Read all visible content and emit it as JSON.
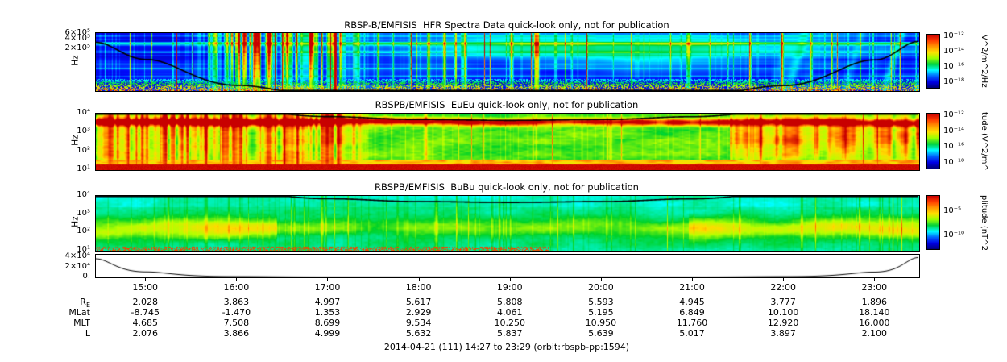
{
  "figure_footer": "2014-04-21 (111) 14:27 to 23:29 (orbit:rbspb-pp:1594)",
  "time_axis": {
    "start": "14:27",
    "end": "23:29",
    "ticks": [
      "15:00",
      "16:00",
      "17:00",
      "18:00",
      "19:00",
      "20:00",
      "21:00",
      "22:00",
      "23:00"
    ]
  },
  "ephemeris": {
    "rows": [
      {
        "label": "R",
        "label_sub": "E",
        "values": [
          "2.028",
          "3.863",
          "4.997",
          "5.617",
          "5.808",
          "5.593",
          "4.945",
          "3.777",
          "1.896"
        ]
      },
      {
        "label": "MLat",
        "label_sub": "",
        "values": [
          "-8.745",
          "-1.470",
          "1.353",
          "2.929",
          "4.061",
          "5.195",
          "6.849",
          "10.100",
          "18.140"
        ]
      },
      {
        "label": "MLT",
        "label_sub": "",
        "values": [
          "4.685",
          "7.508",
          "8.699",
          "9.534",
          "10.250",
          "10.950",
          "11.760",
          "12.920",
          "16.000"
        ]
      },
      {
        "label": "L",
        "label_sub": "",
        "values": [
          "2.076",
          "3.866",
          "4.999",
          "5.632",
          "5.837",
          "5.639",
          "5.017",
          "3.897",
          "2.100"
        ]
      }
    ]
  },
  "chart_data": [
    {
      "type": "heatmap",
      "title": "RBSP-B/EMFISIS  HFR Spectra Data quick-look only, not for publication",
      "ylabel": "Hz",
      "yscale": "log",
      "ylim_hz": [
        10000,
        650000
      ],
      "yticks": [
        "6×10⁵",
        "4×10⁵",
        "2×10⁵"
      ],
      "colormap": "rainbow",
      "colorbar": {
        "label": "V^2/m^2/Hz",
        "ticks": [
          "10⁻¹²",
          "10⁻¹⁴",
          "10⁻¹⁶",
          "10⁻¹⁸"
        ]
      },
      "features": [
        "mostly low-power blue background with faint horizontal cyan banding",
        "broadband red/yellow speckle band along the bottom edge",
        "intense red vertical emission columns between ~15:30 and ~17:30",
        "diffuse cyan enhancement across the upper middle of the interval",
        "black fce overlay curve: high at perigee (start/end), below panel near apogee"
      ]
    },
    {
      "type": "heatmap",
      "title": "RBSPB/EMFISIS  EuEu quick-look only, not for publication",
      "ylabel": "Hz",
      "yscale": "log",
      "ylim_hz": [
        10,
        10000
      ],
      "yticks": [
        "10⁴",
        "10³",
        "10²",
        "10¹"
      ],
      "colormap": "rainbow",
      "colorbar": {
        "label": "tude (V^2/m^",
        "ticks": [
          "10⁻¹²",
          "10⁻¹⁴",
          "10⁻¹⁶",
          "10⁻¹⁸"
        ]
      },
      "features": [
        "green mid-power background across the whole interval",
        "narrow red band near the top (few kHz) just below the fce curve",
        "saturated red/orange vertical columns from ~14:30 to ~17:30 and again after ~22:00",
        "solid red band along the bottom edge",
        "black fce overlay curve dipping to ~4 kHz near apogee (~19:00)"
      ]
    },
    {
      "type": "heatmap",
      "title": "RBSPB/EMFISIS  BuBu quick-look only, not for publication",
      "ylabel": "Hz",
      "yscale": "log",
      "ylim_hz": [
        10,
        10000
      ],
      "yticks": [
        "10⁴",
        "10³",
        "10²",
        "10¹"
      ],
      "colormap": "rainbow",
      "colorbar": {
        "label": "plitude (nT^2",
        "ticks": [
          "10⁻⁵",
          "10⁻¹⁰"
        ]
      },
      "features": [
        "cyan/teal background",
        "green enhancement band around 30-300 Hz across the interval, strongest near start and end",
        "sparse red speckle at the very bottom edge early in the interval",
        "black fce overlay curve along the top, dipping near apogee"
      ]
    },
    {
      "type": "line",
      "title": "",
      "yscale": "linear",
      "ylim": [
        0,
        45000
      ],
      "yticks": [
        "4×10⁴",
        "2×10⁴",
        "0."
      ],
      "x": [
        "14:27",
        "15:00",
        "16:00",
        "17:00",
        "18:00",
        "19:00",
        "20:00",
        "21:00",
        "22:00",
        "23:00",
        "23:29"
      ],
      "values_estimated": [
        35000,
        11000,
        1700,
        800,
        550,
        500,
        550,
        800,
        1650,
        10500,
        30000
      ],
      "description": "single black trace, high at orbit start/end (perigee) and near zero through apogee"
    }
  ],
  "colors": {
    "background": "#ffffff",
    "colormap_max": "#c80000",
    "colormap_min": "#000078",
    "trace": "#000000"
  }
}
